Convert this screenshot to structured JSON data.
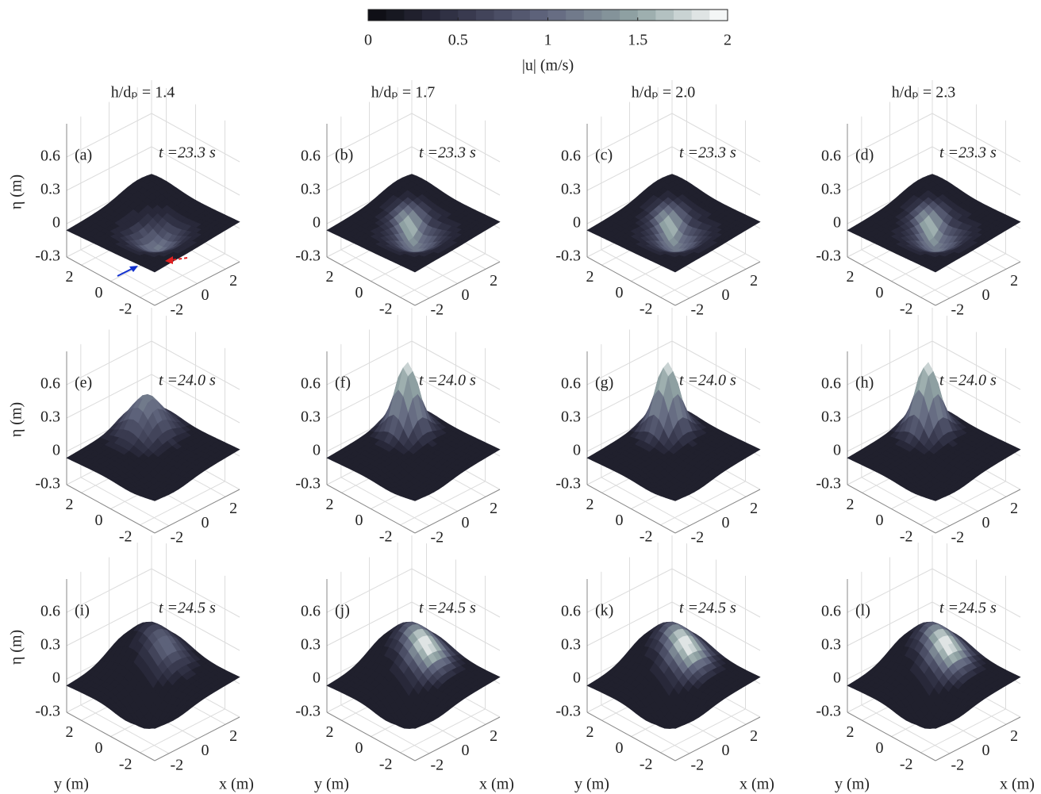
{
  "chart_data": {
    "type": "surface",
    "colorbar": {
      "lim": [
        0,
        2
      ],
      "ticks": [
        0,
        0.5,
        1,
        1.5,
        2
      ],
      "label": "|u| (m/s)",
      "levels": 20,
      "colors": [
        "#0b0b10",
        "#34354a",
        "#62677f",
        "#93a6a6",
        "#ffffff"
      ]
    },
    "columns": [
      "h/dₚ = 1.4",
      "h/dₚ = 1.7",
      "h/dₚ = 2.0",
      "h/dₚ = 2.3"
    ],
    "rows": [
      {
        "time": "t =23.3 s",
        "panels": [
          "(a)",
          "(b)",
          "(c)",
          "(d)"
        ]
      },
      {
        "time": "t =24.0 s",
        "panels": [
          "(e)",
          "(f)",
          "(g)",
          "(h)"
        ]
      },
      {
        "time": "t =24.5 s",
        "panels": [
          "(i)",
          "(j)",
          "(k)",
          "(l)"
        ]
      }
    ],
    "zlabel": "η (m)",
    "xlabel": "x (m)",
    "ylabel": "y (m)",
    "zlim": [
      -0.3,
      0.9
    ],
    "zticks": [
      -0.3,
      0,
      0.3,
      0.6
    ],
    "xlim": [
      -3,
      3
    ],
    "xticks": [
      -2,
      0,
      2
    ],
    "ylim": [
      -3,
      3
    ],
    "yticks": [
      -2,
      0,
      2
    ],
    "grid": true
  }
}
